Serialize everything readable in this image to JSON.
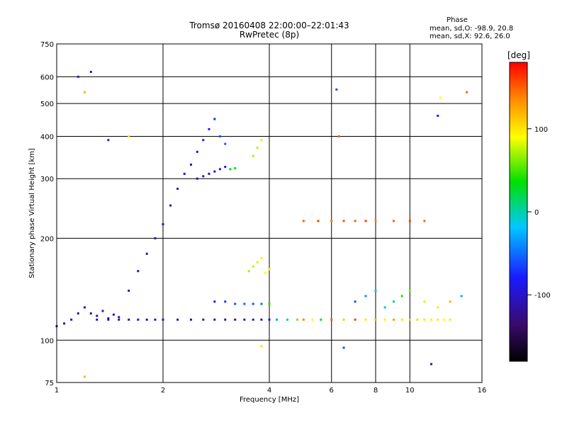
{
  "chart_data": {
    "type": "scatter",
    "title": "Tromsø 20160408 22:00:00–22:01:43",
    "subtitle": "RwPretec (8p)",
    "xlabel": "Frequency [MHz]",
    "ylabel": "Stationary phase Virtual Height [km]",
    "x_scale": "log",
    "y_scale": "log",
    "xlim": [
      1,
      16
    ],
    "ylim": [
      75,
      750
    ],
    "x_ticks": [
      "1",
      "2",
      "4",
      "6",
      "8",
      "10",
      "16"
    ],
    "y_ticks": [
      "75",
      "100",
      "200",
      "300",
      "400",
      "500",
      "600",
      "750"
    ],
    "grid": true,
    "colorbar": {
      "title": "[deg]",
      "range": [
        -180,
        180
      ],
      "ticks": [
        "100",
        "0",
        "-100"
      ]
    },
    "stats": {
      "heading": "Phase",
      "line_o": "mean, sd,O: -98.9, 20.8",
      "line_x": "mean, sd,X:  92.6, 26.0"
    },
    "series": [
      {
        "points": [
          [
            1.0,
            110,
            -105
          ],
          [
            1.05,
            112,
            -110
          ],
          [
            1.1,
            115,
            -100
          ],
          [
            1.15,
            120,
            -105
          ],
          [
            1.2,
            125,
            -110
          ],
          [
            1.25,
            120,
            -100
          ],
          [
            1.3,
            118,
            -108
          ],
          [
            1.35,
            122,
            -102
          ],
          [
            1.4,
            116,
            -112
          ],
          [
            1.45,
            119,
            -104
          ],
          [
            1.5,
            117,
            -106
          ]
        ]
      },
      {
        "points": [
          [
            1.3,
            115,
            -110
          ],
          [
            1.4,
            115,
            -112
          ],
          [
            1.5,
            115,
            -108
          ],
          [
            1.6,
            115,
            -106
          ],
          [
            1.7,
            115,
            -110
          ],
          [
            1.8,
            115,
            -108
          ],
          [
            1.9,
            115,
            -112
          ],
          [
            2.0,
            115,
            -105
          ],
          [
            2.2,
            115,
            -108
          ],
          [
            2.4,
            115,
            -110
          ],
          [
            2.6,
            115,
            -100
          ],
          [
            2.8,
            115,
            -105
          ],
          [
            3.0,
            115,
            -108
          ],
          [
            3.2,
            115,
            -110
          ],
          [
            3.4,
            115,
            -106
          ],
          [
            3.6,
            115,
            -104
          ],
          [
            3.8,
            115,
            -102
          ],
          [
            4.0,
            115,
            -100
          ]
        ]
      },
      {
        "points": [
          [
            4.2,
            115,
            -30
          ],
          [
            4.5,
            115,
            10
          ],
          [
            4.8,
            115,
            60
          ],
          [
            5.0,
            115,
            140
          ],
          [
            5.3,
            115,
            90
          ],
          [
            5.6,
            115,
            40
          ],
          [
            6.0,
            115,
            150
          ],
          [
            6.5,
            115,
            110
          ],
          [
            7.0,
            115,
            160
          ],
          [
            7.5,
            115,
            100
          ],
          [
            8.0,
            115,
            120
          ],
          [
            8.5,
            115,
            95
          ],
          [
            9.0,
            115,
            130
          ],
          [
            9.5,
            115,
            100
          ],
          [
            10.0,
            115,
            110
          ],
          [
            10.5,
            115,
            105
          ],
          [
            11.0,
            115,
            100
          ],
          [
            11.5,
            115,
            95
          ],
          [
            12.0,
            115,
            100
          ],
          [
            12.5,
            115,
            90
          ],
          [
            13.0,
            115,
            100
          ]
        ]
      },
      {
        "points": [
          [
            2.5,
            300,
            -110
          ],
          [
            2.6,
            305,
            -105
          ],
          [
            2.7,
            310,
            -100
          ],
          [
            2.8,
            315,
            -95
          ],
          [
            2.9,
            320,
            -90
          ],
          [
            3.0,
            325,
            -85
          ],
          [
            3.1,
            320,
            30
          ],
          [
            3.2,
            322,
            35
          ]
        ]
      },
      {
        "points": [
          [
            1.6,
            140,
            -112
          ],
          [
            1.7,
            160,
            -108
          ],
          [
            1.8,
            180,
            -110
          ],
          [
            1.9,
            200,
            -105
          ],
          [
            2.0,
            220,
            -108
          ],
          [
            2.1,
            250,
            -110
          ],
          [
            2.2,
            280,
            -106
          ],
          [
            2.3,
            310,
            -104
          ],
          [
            2.4,
            330,
            -108
          ],
          [
            2.5,
            360,
            -90
          ],
          [
            2.6,
            390,
            -85
          ],
          [
            2.7,
            420,
            -80
          ],
          [
            2.8,
            450,
            -75
          ],
          [
            2.9,
            400,
            -60
          ],
          [
            3.0,
            380,
            -55
          ]
        ]
      },
      {
        "points": [
          [
            2.8,
            130,
            -80
          ],
          [
            3.0,
            130,
            -70
          ],
          [
            3.2,
            128,
            -60
          ],
          [
            3.4,
            128,
            -55
          ],
          [
            3.6,
            128,
            -60
          ],
          [
            3.8,
            128,
            -50
          ],
          [
            4.0,
            128,
            40
          ]
        ]
      },
      {
        "points": [
          [
            3.5,
            160,
            70
          ],
          [
            3.6,
            165,
            75
          ],
          [
            3.7,
            170,
            80
          ],
          [
            3.8,
            175,
            85
          ],
          [
            3.9,
            158,
            90
          ],
          [
            4.0,
            162,
            95
          ],
          [
            3.6,
            350,
            70
          ],
          [
            3.7,
            370,
            75
          ],
          [
            3.8,
            390,
            80
          ]
        ]
      },
      {
        "points": [
          [
            5.0,
            225,
            150
          ],
          [
            5.5,
            225,
            160
          ],
          [
            6.0,
            225,
            140
          ],
          [
            6.5,
            225,
            155
          ],
          [
            7.0,
            225,
            150
          ],
          [
            7.5,
            225,
            160
          ],
          [
            8.0,
            225,
            140
          ],
          [
            9.0,
            225,
            150
          ],
          [
            10.0,
            225,
            160
          ],
          [
            11.0,
            225,
            150
          ]
        ]
      },
      {
        "points": [
          [
            7.0,
            130,
            -60
          ],
          [
            7.5,
            135,
            -40
          ],
          [
            8.0,
            140,
            -20
          ],
          [
            8.5,
            125,
            0
          ],
          [
            9.0,
            130,
            20
          ],
          [
            9.5,
            135,
            40
          ],
          [
            10.0,
            140,
            60
          ],
          [
            11.0,
            130,
            80
          ],
          [
            12.0,
            125,
            100
          ],
          [
            13.0,
            130,
            120
          ],
          [
            14.0,
            135,
            -30
          ]
        ]
      },
      {
        "points": [
          [
            1.15,
            600,
            -95
          ],
          [
            1.25,
            620,
            -100
          ],
          [
            1.2,
            540,
            120
          ],
          [
            1.4,
            390,
            -90
          ],
          [
            1.6,
            400,
            100
          ],
          [
            12.0,
            460,
            -80
          ],
          [
            12.2,
            520,
            90
          ],
          [
            14.5,
            540,
            150
          ],
          [
            6.2,
            550,
            -60
          ],
          [
            6.3,
            400,
            150
          ],
          [
            11.5,
            85,
            -110
          ],
          [
            1.2,
            78,
            120
          ],
          [
            3.8,
            96,
            100
          ],
          [
            6.5,
            95,
            -60
          ]
        ]
      }
    ]
  }
}
